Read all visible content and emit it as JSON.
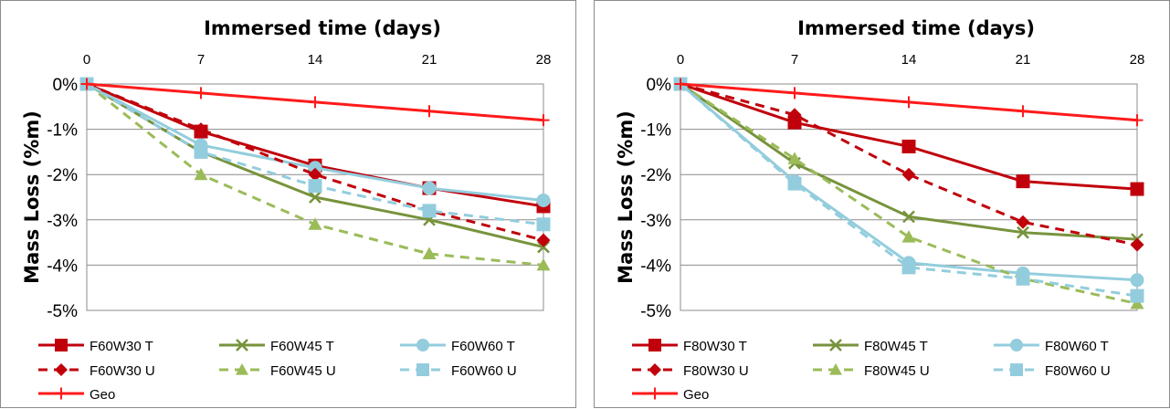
{
  "colors": {
    "red_dark": "#c0000b",
    "green": "#77933c",
    "green_light": "#9bbb59",
    "blue_light": "#93cddd",
    "red": "#ff1a1a",
    "grid": "#8c8c8c"
  },
  "chart_data": [
    {
      "type": "line",
      "xlabel": "Immersed time (days)",
      "ylabel": "Mass Loss (%m)",
      "x": [
        0,
        7,
        14,
        21,
        28
      ],
      "xlim": [
        0,
        28
      ],
      "ylim": [
        -5,
        0
      ],
      "x_axis_position": "top",
      "grid": "horizontal",
      "legend_position": "bottom",
      "ytick_labels": [
        "0%",
        "-1%",
        "-2%",
        "-3%",
        "-4%",
        "-5%"
      ],
      "series": [
        {
          "name": "F60W30 T",
          "values": [
            0,
            -1.05,
            -1.8,
            -2.3,
            -2.7
          ],
          "color": "#c0000b",
          "marker": "square",
          "dash": "solid"
        },
        {
          "name": "F60W45 T",
          "values": [
            0,
            -1.5,
            -2.5,
            -3.0,
            -3.6
          ],
          "color": "#77933c",
          "marker": "x",
          "dash": "solid"
        },
        {
          "name": "F60W60 T",
          "values": [
            0,
            -1.35,
            -1.85,
            -2.3,
            -2.57
          ],
          "color": "#93cddd",
          "marker": "circle",
          "dash": "solid"
        },
        {
          "name": "F60W30 U",
          "values": [
            0,
            -1.0,
            -2.0,
            -2.8,
            -3.45
          ],
          "color": "#c0000b",
          "marker": "diamond",
          "dash": "dashed"
        },
        {
          "name": "F60W45 U",
          "values": [
            0,
            -2.0,
            -3.1,
            -3.75,
            -4.0
          ],
          "color": "#9bbb59",
          "marker": "triangle",
          "dash": "dashed"
        },
        {
          "name": "F60W60 U",
          "values": [
            0,
            -1.5,
            -2.25,
            -2.8,
            -3.1
          ],
          "color": "#93cddd",
          "marker": "square",
          "dash": "dashed"
        },
        {
          "name": "Geo",
          "values": [
            0,
            -0.2,
            -0.4,
            -0.6,
            -0.8
          ],
          "color": "#ff1a1a",
          "marker": "plus",
          "dash": "solid"
        }
      ]
    },
    {
      "type": "line",
      "xlabel": "Immersed time (days)",
      "ylabel": "Mass Loss (%m)",
      "x": [
        0,
        7,
        14,
        21,
        28
      ],
      "xlim": [
        0,
        28
      ],
      "ylim": [
        -5,
        0
      ],
      "x_axis_position": "top",
      "grid": "horizontal",
      "legend_position": "bottom",
      "ytick_labels": [
        "0%",
        "-1%",
        "-2%",
        "-3%",
        "-4%",
        "-5%"
      ],
      "series": [
        {
          "name": "F80W30 T",
          "values": [
            0,
            -0.85,
            -1.38,
            -2.15,
            -2.32
          ],
          "color": "#c0000b",
          "marker": "square",
          "dash": "solid"
        },
        {
          "name": "F80W45 T",
          "values": [
            0,
            -1.75,
            -2.93,
            -3.28,
            -3.43
          ],
          "color": "#77933c",
          "marker": "x",
          "dash": "solid"
        },
        {
          "name": "F80W60 T",
          "values": [
            0,
            -2.15,
            -3.95,
            -4.18,
            -4.33
          ],
          "color": "#93cddd",
          "marker": "circle",
          "dash": "solid"
        },
        {
          "name": "F80W30 U",
          "values": [
            0,
            -0.68,
            -2.0,
            -3.05,
            -3.55
          ],
          "color": "#c0000b",
          "marker": "diamond",
          "dash": "dashed"
        },
        {
          "name": "F80W45 U",
          "values": [
            0,
            -1.65,
            -3.38,
            -4.3,
            -4.85
          ],
          "color": "#9bbb59",
          "marker": "triangle",
          "dash": "dashed"
        },
        {
          "name": "F80W60 U",
          "values": [
            0,
            -2.2,
            -4.05,
            -4.3,
            -4.68
          ],
          "color": "#93cddd",
          "marker": "square",
          "dash": "dashed"
        },
        {
          "name": "Geo",
          "values": [
            0,
            -0.2,
            -0.4,
            -0.6,
            -0.8
          ],
          "color": "#ff1a1a",
          "marker": "plus",
          "dash": "solid"
        }
      ]
    }
  ]
}
